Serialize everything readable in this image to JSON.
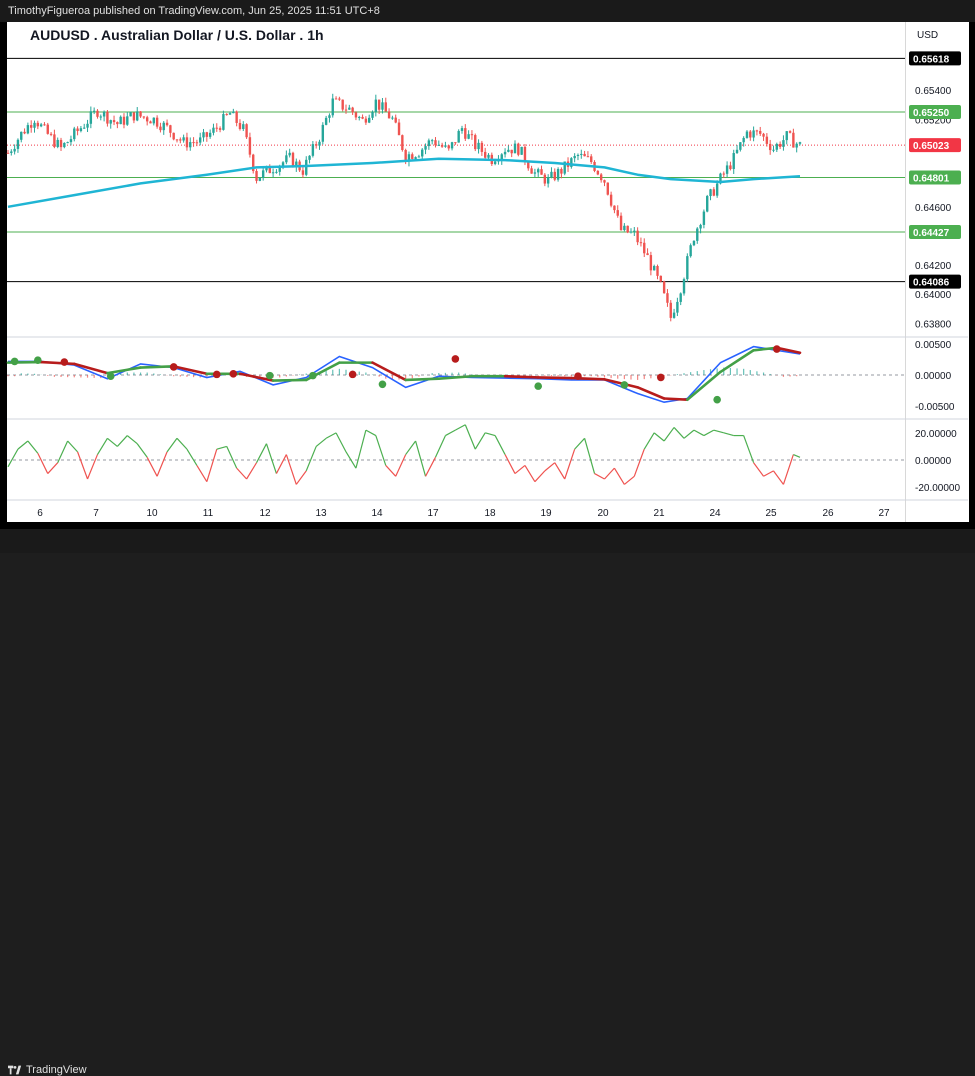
{
  "header": {
    "publish_text": "TimothyFigueroa published on TradingView.com, Jun 25, 2025 11:51 UTC+8"
  },
  "footer": {
    "brand": "TradingView"
  },
  "chart_data": {
    "type": "candlestick",
    "title": "AUDUSD . Australian Dollar / U.S. Dollar . 1h",
    "currency": "USD",
    "x_tick_labels": [
      "6",
      "7",
      "10",
      "11",
      "12",
      "13",
      "14",
      "17",
      "18",
      "19",
      "20",
      "21",
      "24",
      "25",
      "26",
      "27"
    ],
    "price_axis": {
      "ylim": [
        0.6372,
        0.6571
      ],
      "tick_values": [
        0.638,
        0.64,
        0.642,
        0.646,
        0.652,
        0.654
      ],
      "tick_labels": [
        "0.63800",
        "0.64000",
        "0.64200",
        "0.64600",
        "0.65200",
        "0.65400"
      ]
    },
    "horizontal_levels": [
      {
        "value": 0.65618,
        "label": "0.65618",
        "color": "#000000"
      },
      {
        "value": 0.6525,
        "label": "0.65250",
        "color": "#4caf50"
      },
      {
        "value": 0.64801,
        "label": "0.64801",
        "color": "#4caf50"
      },
      {
        "value": 0.64427,
        "label": "0.64427",
        "color": "#4caf50"
      },
      {
        "value": 0.64086,
        "label": "0.64086",
        "color": "#000000"
      }
    ],
    "last_price": {
      "value": 0.65023,
      "label": "0.65023",
      "color": "#f23645"
    },
    "price_path": [
      [
        0,
        0.6497
      ],
      [
        4,
        0.651
      ],
      [
        8,
        0.6521
      ],
      [
        11,
        0.6512
      ],
      [
        16,
        0.65
      ],
      [
        21,
        0.6512
      ],
      [
        27,
        0.6526
      ],
      [
        33,
        0.6517
      ],
      [
        38,
        0.6523
      ],
      [
        44,
        0.652
      ],
      [
        48,
        0.6514
      ],
      [
        53,
        0.6504
      ],
      [
        58,
        0.6505
      ],
      [
        62,
        0.6512
      ],
      [
        67,
        0.6524
      ],
      [
        71,
        0.6513
      ],
      [
        75,
        0.648
      ],
      [
        80,
        0.6487
      ],
      [
        85,
        0.6493
      ],
      [
        89,
        0.6485
      ],
      [
        94,
        0.6508
      ],
      [
        98,
        0.6532
      ],
      [
        103,
        0.6527
      ],
      [
        107,
        0.6519
      ],
      [
        111,
        0.6532
      ],
      [
        116,
        0.652
      ],
      [
        120,
        0.6495
      ],
      [
        124,
        0.6498
      ],
      [
        128,
        0.6506
      ],
      [
        133,
        0.6498
      ],
      [
        137,
        0.6514
      ],
      [
        141,
        0.6502
      ],
      [
        146,
        0.6493
      ],
      [
        150,
        0.65
      ],
      [
        154,
        0.65
      ],
      [
        159,
        0.6483
      ],
      [
        163,
        0.6478
      ],
      [
        167,
        0.6485
      ],
      [
        172,
        0.6495
      ],
      [
        176,
        0.6491
      ],
      [
        180,
        0.6478
      ],
      [
        185,
        0.6444
      ],
      [
        189,
        0.6441
      ],
      [
        193,
        0.6425
      ],
      [
        197,
        0.6405
      ],
      [
        200,
        0.6384
      ],
      [
        203,
        0.6405
      ],
      [
        207,
        0.644
      ],
      [
        211,
        0.6464
      ],
      [
        215,
        0.6479
      ],
      [
        219,
        0.6493
      ],
      [
        223,
        0.6511
      ],
      [
        227,
        0.651
      ],
      [
        231,
        0.65
      ],
      [
        235,
        0.6508
      ],
      [
        239,
        0.6502
      ]
    ],
    "moving_average": {
      "color": "#1fb5d4",
      "points": [
        [
          0,
          0.646
        ],
        [
          20,
          0.6468
        ],
        [
          40,
          0.6476
        ],
        [
          60,
          0.6482
        ],
        [
          75,
          0.6487
        ],
        [
          90,
          0.6488
        ],
        [
          110,
          0.649
        ],
        [
          130,
          0.6493
        ],
        [
          150,
          0.6492
        ],
        [
          165,
          0.649
        ],
        [
          180,
          0.6487
        ],
        [
          190,
          0.6482
        ],
        [
          200,
          0.6479
        ],
        [
          215,
          0.6477
        ],
        [
          225,
          0.6479
        ],
        [
          239,
          0.6481
        ]
      ]
    },
    "oscillator_1": {
      "tick_labels": [
        "0.00500",
        "0.00000",
        "-0.00500"
      ],
      "ylim": [
        -0.0055,
        0.0055
      ],
      "fast_line": [
        [
          0,
          0.0022
        ],
        [
          10,
          0.0022
        ],
        [
          20,
          0.0016
        ],
        [
          30,
          -0.0006
        ],
        [
          40,
          0.0018
        ],
        [
          50,
          0.0012
        ],
        [
          60,
          -0.0004
        ],
        [
          70,
          0.0006
        ],
        [
          80,
          -0.0016
        ],
        [
          90,
          -0.0004
        ],
        [
          100,
          0.003
        ],
        [
          110,
          0.0012
        ],
        [
          120,
          -0.002
        ],
        [
          130,
          -0.0002
        ],
        [
          140,
          -0.0004
        ],
        [
          150,
          -0.0005
        ],
        [
          160,
          -0.0006
        ],
        [
          170,
          -0.0008
        ],
        [
          180,
          -0.0008
        ],
        [
          190,
          -0.003
        ],
        [
          198,
          -0.0044
        ],
        [
          205,
          -0.0038
        ],
        [
          215,
          0.002
        ],
        [
          225,
          0.0046
        ],
        [
          232,
          0.004
        ],
        [
          239,
          0.0034
        ]
      ],
      "slow_line": [
        [
          0,
          0.002
        ],
        [
          10,
          0.0021
        ],
        [
          20,
          0.0018
        ],
        [
          30,
          0.0003
        ],
        [
          40,
          0.0012
        ],
        [
          50,
          0.0014
        ],
        [
          60,
          0.0002
        ],
        [
          70,
          0.0002
        ],
        [
          80,
          -0.0009
        ],
        [
          90,
          -0.0008
        ],
        [
          100,
          0.002
        ],
        [
          110,
          0.002
        ],
        [
          120,
          -0.0008
        ],
        [
          130,
          -0.0006
        ],
        [
          140,
          -0.0002
        ],
        [
          150,
          -0.0002
        ],
        [
          160,
          -0.0004
        ],
        [
          170,
          -0.0005
        ],
        [
          180,
          -0.0007
        ],
        [
          190,
          -0.002
        ],
        [
          198,
          -0.0038
        ],
        [
          205,
          -0.004
        ],
        [
          215,
          0.0005
        ],
        [
          225,
          0.004
        ],
        [
          232,
          0.0044
        ],
        [
          239,
          0.0036
        ]
      ],
      "histogram": [
        [
          3,
          0.0003
        ],
        [
          8,
          0.0002
        ],
        [
          14,
          -0.0003
        ],
        [
          22,
          -0.0004
        ],
        [
          28,
          -0.0005
        ],
        [
          35,
          0.0004
        ],
        [
          42,
          0.0004
        ],
        [
          50,
          -0.0002
        ],
        [
          58,
          -0.0004
        ],
        [
          66,
          0.0003
        ],
        [
          74,
          -0.0005
        ],
        [
          82,
          -0.0004
        ],
        [
          92,
          0.0004
        ],
        [
          100,
          0.001
        ],
        [
          108,
          0.0004
        ],
        [
          114,
          -0.0006
        ],
        [
          120,
          -0.0008
        ],
        [
          128,
          0.0003
        ],
        [
          136,
          0.0004
        ],
        [
          144,
          -0.0002
        ],
        [
          152,
          -0.0002
        ],
        [
          160,
          -0.0001
        ],
        [
          168,
          -0.0002
        ],
        [
          176,
          -0.0002
        ],
        [
          184,
          -0.0006
        ],
        [
          190,
          -0.0008
        ],
        [
          196,
          -0.0004
        ],
        [
          204,
          0.0003
        ],
        [
          210,
          0.0008
        ],
        [
          216,
          0.0012
        ],
        [
          222,
          0.001
        ],
        [
          228,
          0.0004
        ],
        [
          234,
          -0.0003
        ],
        [
          238,
          -0.0002
        ]
      ],
      "cross_dots": [
        [
          2,
          0.0022,
          "green"
        ],
        [
          9,
          0.0024,
          "green"
        ],
        [
          17,
          0.0021,
          "red"
        ],
        [
          31,
          -0.0002,
          "green"
        ],
        [
          50,
          0.0013,
          "red"
        ],
        [
          63,
          0.0001,
          "red"
        ],
        [
          68,
          0.0002,
          "red"
        ],
        [
          79,
          -0.0001,
          "green"
        ],
        [
          92,
          -0.0001,
          "green"
        ],
        [
          104,
          0.0001,
          "red"
        ],
        [
          113,
          -0.0015,
          "green"
        ],
        [
          135,
          0.0026,
          "red"
        ],
        [
          160,
          -0.0018,
          "green"
        ],
        [
          172,
          -0.0002,
          "red"
        ],
        [
          186,
          -0.0016,
          "green"
        ],
        [
          197,
          -0.0004,
          "red"
        ],
        [
          214,
          -0.004,
          "green"
        ],
        [
          232,
          0.0042,
          "red"
        ]
      ],
      "colors": {
        "fast": "#2962ff",
        "slow_up": "#43a047",
        "slow_down": "#b71c1c",
        "hist_up": "#26a69a",
        "hist_down": "#ef5350"
      }
    },
    "oscillator_2": {
      "tick_labels": [
        "20.00000",
        "0.00000",
        "-20.00000"
      ],
      "ylim": [
        -28,
        28
      ],
      "series": [
        [
          0,
          -5
        ],
        [
          3,
          8
        ],
        [
          6,
          14
        ],
        [
          9,
          5
        ],
        [
          12,
          -10
        ],
        [
          15,
          -2
        ],
        [
          18,
          14
        ],
        [
          21,
          6
        ],
        [
          24,
          -14
        ],
        [
          27,
          4
        ],
        [
          30,
          16
        ],
        [
          33,
          10
        ],
        [
          36,
          18
        ],
        [
          39,
          12
        ],
        [
          42,
          2
        ],
        [
          45,
          -12
        ],
        [
          48,
          6
        ],
        [
          51,
          16
        ],
        [
          54,
          8
        ],
        [
          57,
          -4
        ],
        [
          60,
          -16
        ],
        [
          63,
          8
        ],
        [
          66,
          10
        ],
        [
          69,
          -6
        ],
        [
          72,
          -14
        ],
        [
          75,
          -2
        ],
        [
          78,
          12
        ],
        [
          81,
          -10
        ],
        [
          84,
          4
        ],
        [
          87,
          -18
        ],
        [
          90,
          -8
        ],
        [
          93,
          10
        ],
        [
          96,
          16
        ],
        [
          99,
          20
        ],
        [
          102,
          6
        ],
        [
          105,
          -6
        ],
        [
          108,
          22
        ],
        [
          111,
          18
        ],
        [
          114,
          -4
        ],
        [
          117,
          -12
        ],
        [
          120,
          4
        ],
        [
          123,
          14
        ],
        [
          126,
          -12
        ],
        [
          129,
          2
        ],
        [
          132,
          18
        ],
        [
          135,
          22
        ],
        [
          138,
          26
        ],
        [
          141,
          8
        ],
        [
          144,
          20
        ],
        [
          147,
          18
        ],
        [
          150,
          4
        ],
        [
          153,
          -10
        ],
        [
          156,
          -4
        ],
        [
          159,
          -16
        ],
        [
          162,
          -8
        ],
        [
          165,
          -2
        ],
        [
          168,
          -14
        ],
        [
          171,
          8
        ],
        [
          174,
          16
        ],
        [
          177,
          -10
        ],
        [
          180,
          -14
        ],
        [
          183,
          -6
        ],
        [
          186,
          -18
        ],
        [
          189,
          -12
        ],
        [
          192,
          8
        ],
        [
          195,
          20
        ],
        [
          198,
          14
        ],
        [
          201,
          24
        ],
        [
          204,
          16
        ],
        [
          207,
          22
        ],
        [
          210,
          18
        ],
        [
          213,
          22
        ],
        [
          216,
          20
        ],
        [
          219,
          18
        ],
        [
          222,
          18
        ],
        [
          225,
          -2
        ],
        [
          228,
          -12
        ],
        [
          231,
          -8
        ],
        [
          234,
          -18
        ],
        [
          237,
          4
        ],
        [
          239,
          2
        ]
      ],
      "colors": {
        "up": "#4caf50",
        "down": "#ef5350"
      }
    }
  }
}
